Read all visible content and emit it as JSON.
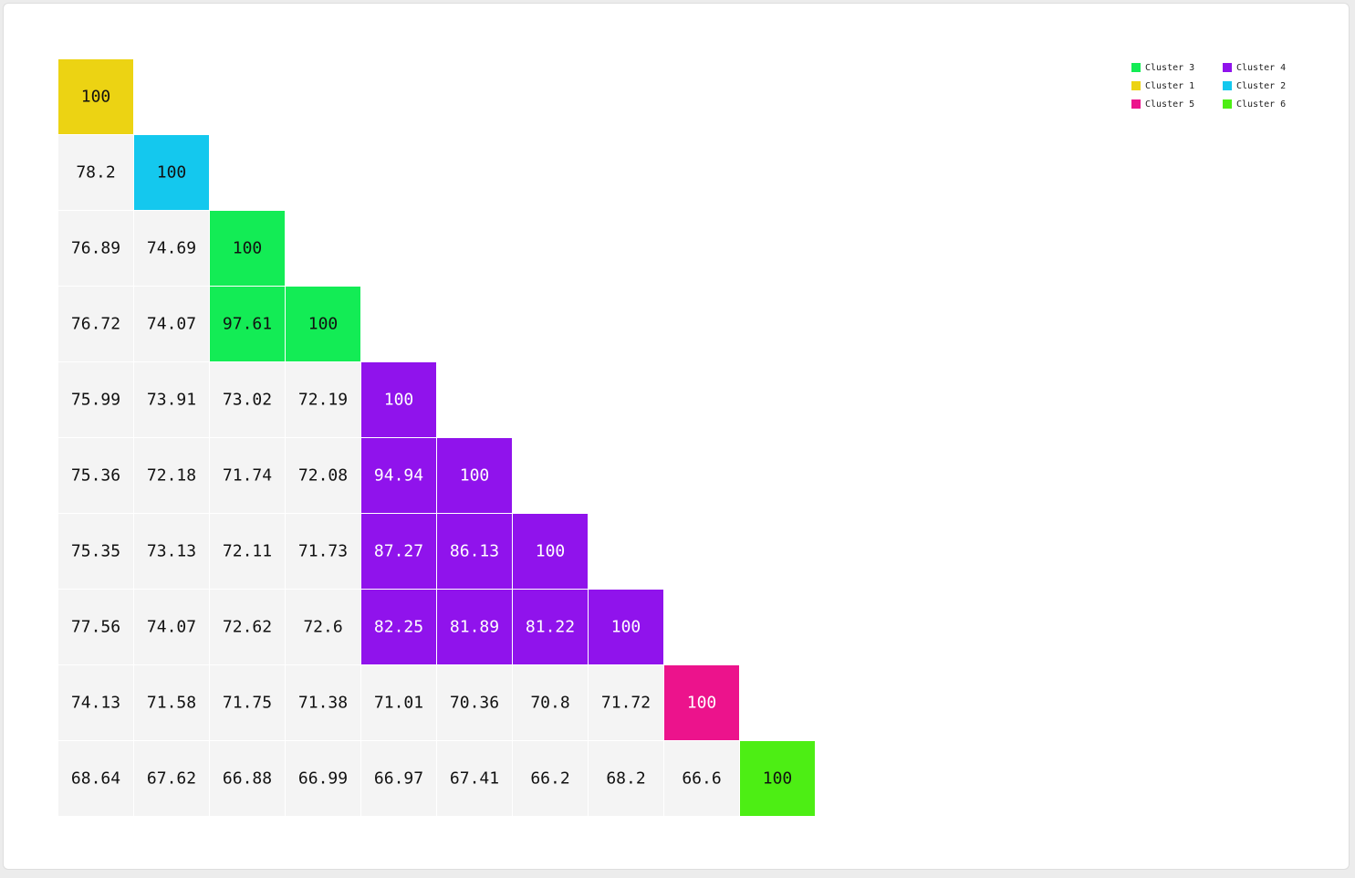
{
  "chart_data": {
    "type": "heatmap",
    "matrix": [
      [
        100
      ],
      [
        78.2,
        100
      ],
      [
        76.89,
        74.69,
        100
      ],
      [
        76.72,
        74.07,
        97.61,
        100
      ],
      [
        75.99,
        73.91,
        73.02,
        72.19,
        100
      ],
      [
        75.36,
        72.18,
        71.74,
        72.08,
        94.94,
        100
      ],
      [
        75.35,
        73.13,
        72.11,
        71.73,
        87.27,
        86.13,
        100
      ],
      [
        77.56,
        74.07,
        72.62,
        72.6,
        82.25,
        81.89,
        81.22,
        100
      ],
      [
        74.13,
        71.58,
        71.75,
        71.38,
        71.01,
        70.36,
        70.8,
        71.72,
        100
      ],
      [
        68.64,
        67.62,
        66.88,
        66.99,
        66.97,
        67.41,
        66.2,
        68.2,
        66.6,
        100
      ]
    ],
    "item_cluster": [
      0,
      1,
      2,
      2,
      3,
      3,
      3,
      3,
      4,
      5
    ],
    "clusters": [
      {
        "name": "Cluster 1",
        "color": "#ecd313",
        "text_color": "#111111"
      },
      {
        "name": "Cluster 2",
        "color": "#14c8ee",
        "text_color": "#111111"
      },
      {
        "name": "Cluster 3",
        "color": "#13ec55",
        "text_color": "#111111"
      },
      {
        "name": "Cluster 4",
        "color": "#9013ec",
        "text_color": "#ffffff"
      },
      {
        "name": "Cluster 5",
        "color": "#ec138c",
        "text_color": "#ffffff"
      },
      {
        "name": "Cluster 6",
        "color": "#4dee14",
        "text_color": "#111111"
      }
    ],
    "other_cell_color": "#f4f4f4",
    "other_text_color": "#111111",
    "legend": {
      "placement": "top-right",
      "order": [
        "Cluster 3",
        "Cluster 4",
        "Cluster 1",
        "Cluster 2",
        "Cluster 5",
        "Cluster 6"
      ]
    }
  }
}
